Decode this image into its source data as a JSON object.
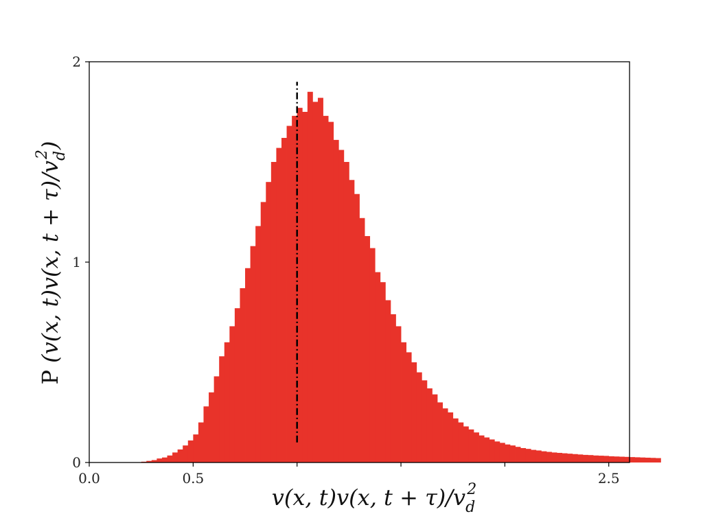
{
  "chart_data": {
    "type": "bar",
    "subtype": "histogram",
    "xlabel": {
      "text": "v(x, t)v(x, t + τ)/v",
      "sub": "d",
      "sup": "2"
    },
    "ylabel": {
      "prefix": "P ",
      "text": "(v(x, t)v(x, t + τ)/v",
      "sub": "d",
      "sup": "2",
      "suffix": ")"
    },
    "xlim": [
      0,
      2.6
    ],
    "ylim": [
      0,
      2
    ],
    "xticks": [
      0.0,
      0.5,
      1.0,
      1.5,
      2.0,
      2.5
    ],
    "xtick_labels": [
      "0.0",
      "0.5",
      "",
      "",
      "",
      "2.5"
    ],
    "yticks": [
      0,
      1,
      2
    ],
    "ytick_labels": [
      "0",
      "1",
      "2"
    ],
    "grid": false,
    "bar_color": "#e8332a",
    "bin_width": 0.025,
    "bin_start": 0.25,
    "values": [
      0.004,
      0.008,
      0.012,
      0.02,
      0.025,
      0.035,
      0.05,
      0.065,
      0.085,
      0.11,
      0.14,
      0.2,
      0.28,
      0.35,
      0.43,
      0.53,
      0.6,
      0.68,
      0.77,
      0.87,
      0.97,
      1.08,
      1.18,
      1.3,
      1.4,
      1.5,
      1.57,
      1.62,
      1.68,
      1.73,
      1.77,
      1.75,
      1.85,
      1.8,
      1.82,
      1.73,
      1.7,
      1.61,
      1.56,
      1.5,
      1.41,
      1.34,
      1.22,
      1.13,
      1.07,
      0.95,
      0.9,
      0.81,
      0.74,
      0.68,
      0.6,
      0.55,
      0.5,
      0.45,
      0.41,
      0.37,
      0.34,
      0.3,
      0.27,
      0.25,
      0.22,
      0.2,
      0.18,
      0.165,
      0.15,
      0.135,
      0.125,
      0.115,
      0.105,
      0.098,
      0.09,
      0.085,
      0.078,
      0.072,
      0.068,
      0.063,
      0.06,
      0.056,
      0.053,
      0.05,
      0.048,
      0.046,
      0.044,
      0.042,
      0.04,
      0.038,
      0.037,
      0.035,
      0.034,
      0.033,
      0.031,
      0.03,
      0.029,
      0.028,
      0.027,
      0.026,
      0.025,
      0.024,
      0.023,
      0.022
    ],
    "reference_line": {
      "x": 1.0,
      "y_range": [
        0.1,
        1.9
      ],
      "style": "dash-dot",
      "color": "#000000"
    }
  }
}
